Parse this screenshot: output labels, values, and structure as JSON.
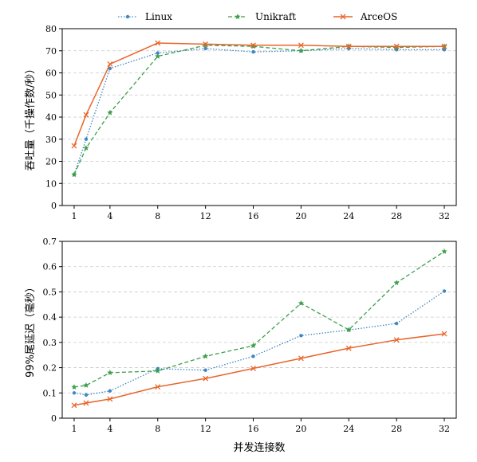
{
  "legend": {
    "placement": "top-center",
    "entries": [
      "Linux",
      "Unikraft",
      "ArceOS"
    ]
  },
  "chart_data": [
    {
      "type": "line",
      "title": "",
      "xlabel": "",
      "ylabel": "吞吐量（千操作数/秒）",
      "x": [
        1,
        2,
        4,
        8,
        12,
        16,
        20,
        24,
        28,
        32
      ],
      "xticks": [
        1,
        4,
        8,
        12,
        16,
        20,
        24,
        28,
        32
      ],
      "xlim": [
        0,
        33
      ],
      "ylim": [
        0,
        80
      ],
      "yticks": [
        0,
        10,
        20,
        30,
        40,
        50,
        60,
        70,
        80
      ],
      "grid": "y-dashed",
      "series": [
        {
          "name": "Linux",
          "color": "#3d87c4",
          "dash": "dotted",
          "marker": "dot",
          "values": [
            14,
            30,
            62,
            69,
            71,
            69.5,
            70,
            71,
            70.5,
            70.5
          ]
        },
        {
          "name": "Unikraft",
          "color": "#3c9f4b",
          "dash": "dashed",
          "marker": "star",
          "values": [
            14,
            26,
            42,
            67.5,
            72.5,
            72,
            70,
            72,
            71.5,
            72
          ]
        },
        {
          "name": "ArceOS",
          "color": "#e8662c",
          "dash": "solid",
          "marker": "x",
          "values": [
            27,
            41,
            64,
            73.5,
            73,
            72.5,
            72.5,
            72,
            72,
            72
          ]
        }
      ]
    },
    {
      "type": "line",
      "title": "",
      "xlabel": "并发连接数",
      "ylabel": "99%尾延迟（毫秒）",
      "x": [
        1,
        2,
        4,
        8,
        12,
        16,
        20,
        24,
        28,
        32
      ],
      "xticks": [
        1,
        4,
        8,
        12,
        16,
        20,
        24,
        28,
        32
      ],
      "xlim": [
        0,
        33
      ],
      "ylim": [
        0,
        0.7
      ],
      "yticks": [
        0,
        0.1,
        0.2,
        0.3,
        0.4,
        0.5,
        0.6,
        0.7
      ],
      "grid": "y-dashed",
      "series": [
        {
          "name": "Linux",
          "color": "#3d87c4",
          "dash": "dotted",
          "marker": "dot",
          "values": [
            0.1,
            0.092,
            0.108,
            0.196,
            0.19,
            0.245,
            0.327,
            0.349,
            0.375,
            0.503
          ]
        },
        {
          "name": "Unikraft",
          "color": "#3c9f4b",
          "dash": "dashed",
          "marker": "star",
          "values": [
            0.123,
            0.13,
            0.18,
            0.187,
            0.245,
            0.287,
            0.455,
            0.35,
            0.536,
            0.66
          ]
        },
        {
          "name": "ArceOS",
          "color": "#e8662c",
          "dash": "solid",
          "marker": "x",
          "values": [
            0.051,
            0.06,
            0.076,
            0.124,
            0.157,
            0.197,
            0.237,
            0.277,
            0.31,
            0.334
          ]
        }
      ]
    }
  ]
}
